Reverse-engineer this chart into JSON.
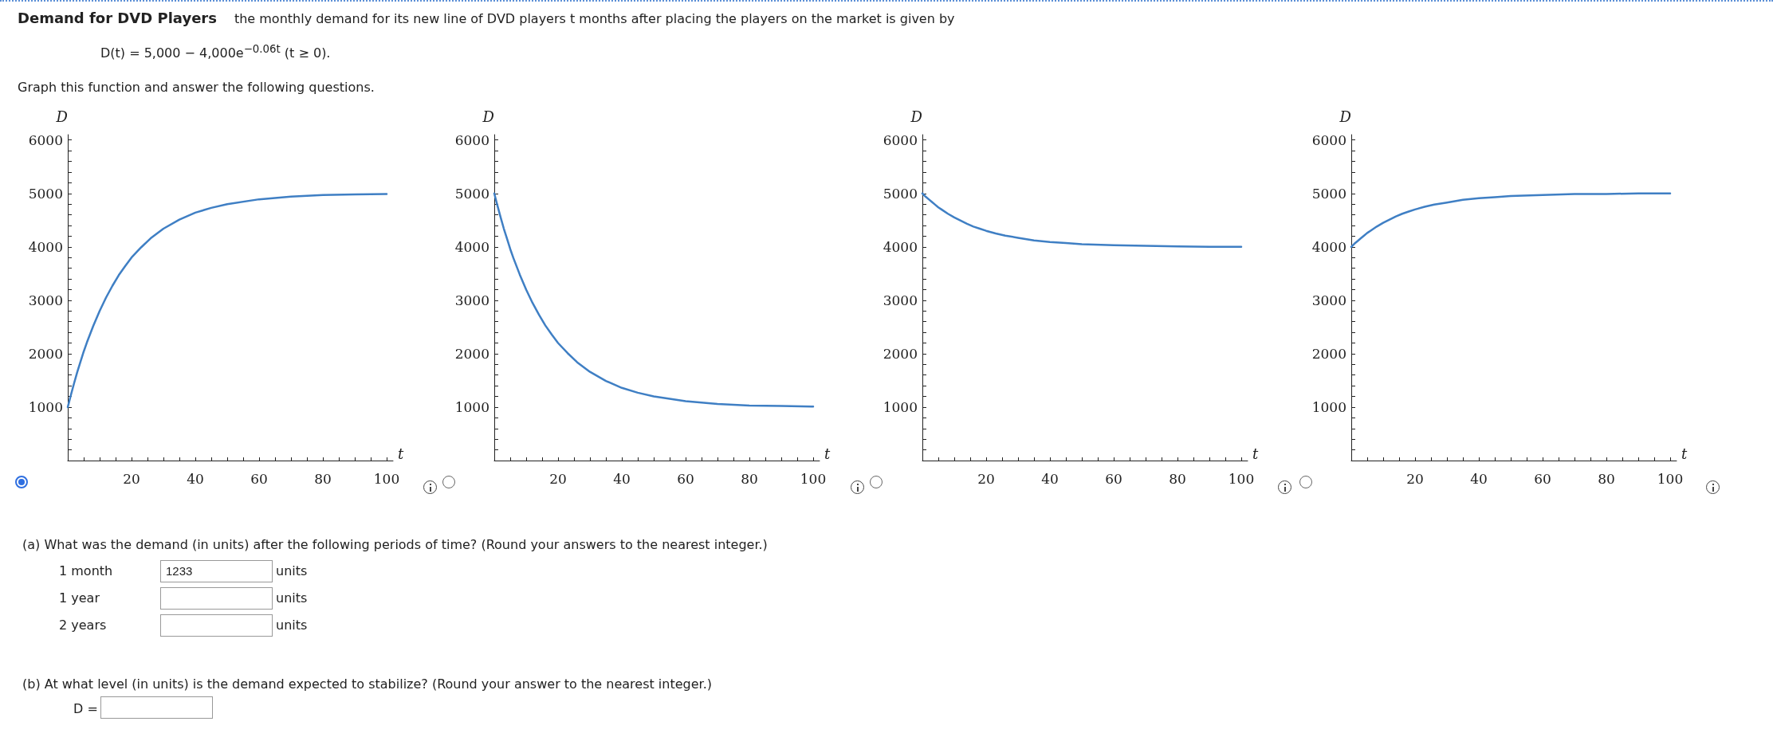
{
  "chart_data": [
    {
      "type": "other",
      "title": "Demand for DVD Players",
      "subtitle": "the monthly demand for its new line of DVD players t months after placing the players on the market is given by",
      "annotations": [
        "D(t) = 5,000 − 4,000e$^{−0.06t}$   (t ≥ 0).",
        "Graph this function and answer the following questions.",
        "(a)  What was the demand (in units) after the following periods of time? (Round your answers to the nearest integer.)",
        "1 month",
        "1233",
        "units",
        "1 year",
        "units",
        "2 years",
        "units",
        "(b)  At what level (in units) is the demand expected to stabilize? (Round your answer to the nearest integer.)",
        "D ="
      ]
    },
    {
      "type": "line",
      "xlabel": "t",
      "ylabel": "D",
      "xlim": [
        0,
        102
      ],
      "ylim": [
        0,
        6100
      ],
      "marker": "none",
      "line_style": "solid",
      "grid": false,
      "xticks": [
        {
          "value": 5,
          "label": null
        },
        {
          "value": 10,
          "label": null
        },
        {
          "value": 15,
          "label": null
        },
        20,
        {
          "value": 25,
          "label": null
        },
        {
          "value": 30,
          "label": null
        },
        {
          "value": 35,
          "label": null
        },
        40,
        {
          "value": 45,
          "label": null
        },
        {
          "value": 50,
          "label": null
        },
        {
          "value": 55,
          "label": null
        },
        60,
        {
          "value": 65,
          "label": null
        },
        {
          "value": 70,
          "label": null
        },
        {
          "value": 75,
          "label": null
        },
        80,
        {
          "value": 85,
          "label": null
        },
        {
          "value": 90,
          "label": null
        },
        {
          "value": 95,
          "label": null
        },
        100
      ],
      "yticks": [
        {
          "value": 200,
          "label": null
        },
        {
          "value": 400,
          "label": null
        },
        {
          "value": 600,
          "label": null
        },
        {
          "value": 800,
          "label": null
        },
        1000,
        {
          "value": 1200,
          "label": null
        },
        {
          "value": 1400,
          "label": null
        },
        {
          "value": 1600,
          "label": null
        },
        {
          "value": 1800,
          "label": null
        },
        2000,
        {
          "value": 2200,
          "label": null
        },
        {
          "value": 2400,
          "label": null
        },
        {
          "value": 2600,
          "label": null
        },
        {
          "value": 2800,
          "label": null
        },
        3000,
        {
          "value": 3200,
          "label": null
        },
        {
          "value": 3400,
          "label": null
        },
        {
          "value": 3600,
          "label": null
        },
        {
          "value": 3800,
          "label": null
        },
        4000,
        {
          "value": 4200,
          "label": null
        },
        {
          "value": 4400,
          "label": null
        },
        {
          "value": 4600,
          "label": null
        },
        {
          "value": 4800,
          "label": null
        },
        5000,
        {
          "value": 5200,
          "label": null
        },
        {
          "value": 5400,
          "label": null
        },
        {
          "value": 5600,
          "label": null
        },
        {
          "value": 5800,
          "label": null
        },
        6000
      ],
      "x": [
        0,
        1,
        2,
        3,
        4,
        5,
        6,
        8,
        10,
        12,
        14,
        16,
        18,
        20,
        23,
        26,
        30,
        35,
        40,
        45,
        50,
        60,
        70,
        80,
        90,
        100
      ],
      "series": [
        {
          "color": "#3f7fc4",
          "values": [
            1000,
            1230,
            1450,
            1660,
            1850,
            2040,
            2210,
            2520,
            2800,
            3050,
            3270,
            3470,
            3640,
            3800,
            3990,
            4160,
            4340,
            4510,
            4640,
            4730,
            4800,
            4890,
            4940,
            4970,
            4980,
            4990
          ]
        }
      ]
    },
    {
      "type": "line",
      "xlabel": "t",
      "ylabel": "D",
      "xlim": [
        0,
        102
      ],
      "ylim": [
        0,
        6100
      ],
      "marker": "none",
      "line_style": "solid",
      "grid": false,
      "xticks": [
        {
          "value": 5,
          "label": null
        },
        {
          "value": 10,
          "label": null
        },
        {
          "value": 15,
          "label": null
        },
        20,
        {
          "value": 25,
          "label": null
        },
        {
          "value": 30,
          "label": null
        },
        {
          "value": 35,
          "label": null
        },
        40,
        {
          "value": 45,
          "label": null
        },
        {
          "value": 50,
          "label": null
        },
        {
          "value": 55,
          "label": null
        },
        60,
        {
          "value": 65,
          "label": null
        },
        {
          "value": 70,
          "label": null
        },
        {
          "value": 75,
          "label": null
        },
        80,
        {
          "value": 85,
          "label": null
        },
        {
          "value": 90,
          "label": null
        },
        {
          "value": 95,
          "label": null
        },
        100
      ],
      "yticks": [
        {
          "value": 200,
          "label": null
        },
        {
          "value": 400,
          "label": null
        },
        {
          "value": 600,
          "label": null
        },
        {
          "value": 800,
          "label": null
        },
        1000,
        {
          "value": 1200,
          "label": null
        },
        {
          "value": 1400,
          "label": null
        },
        {
          "value": 1600,
          "label": null
        },
        {
          "value": 1800,
          "label": null
        },
        2000,
        {
          "value": 2200,
          "label": null
        },
        {
          "value": 2400,
          "label": null
        },
        {
          "value": 2600,
          "label": null
        },
        {
          "value": 2800,
          "label": null
        },
        3000,
        {
          "value": 3200,
          "label": null
        },
        {
          "value": 3400,
          "label": null
        },
        {
          "value": 3600,
          "label": null
        },
        {
          "value": 3800,
          "label": null
        },
        4000,
        {
          "value": 4200,
          "label": null
        },
        {
          "value": 4400,
          "label": null
        },
        {
          "value": 4600,
          "label": null
        },
        {
          "value": 4800,
          "label": null
        },
        5000,
        {
          "value": 5200,
          "label": null
        },
        {
          "value": 5400,
          "label": null
        },
        {
          "value": 5600,
          "label": null
        },
        {
          "value": 5800,
          "label": null
        },
        6000
      ],
      "x": [
        0,
        1,
        2,
        3,
        4,
        5,
        6,
        8,
        10,
        12,
        14,
        16,
        18,
        20,
        23,
        26,
        30,
        35,
        40,
        45,
        50,
        60,
        70,
        80,
        90,
        100
      ],
      "series": [
        {
          "color": "#3f7fc4",
          "values": [
            5000,
            4770,
            4550,
            4340,
            4150,
            3960,
            3790,
            3480,
            3200,
            2950,
            2730,
            2530,
            2360,
            2200,
            2010,
            1840,
            1660,
            1490,
            1360,
            1270,
            1200,
            1110,
            1060,
            1030,
            1020,
            1010
          ]
        }
      ]
    },
    {
      "type": "line",
      "xlabel": "t",
      "ylabel": "D",
      "xlim": [
        0,
        102
      ],
      "ylim": [
        0,
        6100
      ],
      "marker": "none",
      "line_style": "solid",
      "grid": false,
      "xticks": [
        {
          "value": 5,
          "label": null
        },
        {
          "value": 10,
          "label": null
        },
        {
          "value": 15,
          "label": null
        },
        20,
        {
          "value": 25,
          "label": null
        },
        {
          "value": 30,
          "label": null
        },
        {
          "value": 35,
          "label": null
        },
        40,
        {
          "value": 45,
          "label": null
        },
        {
          "value": 50,
          "label": null
        },
        {
          "value": 55,
          "label": null
        },
        60,
        {
          "value": 65,
          "label": null
        },
        {
          "value": 70,
          "label": null
        },
        {
          "value": 75,
          "label": null
        },
        80,
        {
          "value": 85,
          "label": null
        },
        {
          "value": 90,
          "label": null
        },
        {
          "value": 95,
          "label": null
        },
        100
      ],
      "yticks": [
        {
          "value": 200,
          "label": null
        },
        {
          "value": 400,
          "label": null
        },
        {
          "value": 600,
          "label": null
        },
        {
          "value": 800,
          "label": null
        },
        1000,
        {
          "value": 1200,
          "label": null
        },
        {
          "value": 1400,
          "label": null
        },
        {
          "value": 1600,
          "label": null
        },
        {
          "value": 1800,
          "label": null
        },
        2000,
        {
          "value": 2200,
          "label": null
        },
        {
          "value": 2400,
          "label": null
        },
        {
          "value": 2600,
          "label": null
        },
        {
          "value": 2800,
          "label": null
        },
        3000,
        {
          "value": 3200,
          "label": null
        },
        {
          "value": 3400,
          "label": null
        },
        {
          "value": 3600,
          "label": null
        },
        {
          "value": 3800,
          "label": null
        },
        4000,
        {
          "value": 4200,
          "label": null
        },
        {
          "value": 4400,
          "label": null
        },
        {
          "value": 4600,
          "label": null
        },
        {
          "value": 4800,
          "label": null
        },
        5000,
        {
          "value": 5200,
          "label": null
        },
        {
          "value": 5400,
          "label": null
        },
        {
          "value": 5600,
          "label": null
        },
        {
          "value": 5800,
          "label": null
        },
        6000
      ],
      "x": [
        0,
        1,
        2,
        3,
        4,
        5,
        6,
        8,
        10,
        12,
        14,
        16,
        18,
        20,
        23,
        26,
        30,
        35,
        40,
        45,
        50,
        60,
        70,
        80,
        90,
        100
      ],
      "series": [
        {
          "color": "#3f7fc4",
          "values": [
            5000,
            4940,
            4890,
            4840,
            4790,
            4740,
            4700,
            4620,
            4550,
            4490,
            4430,
            4380,
            4340,
            4300,
            4250,
            4210,
            4170,
            4120,
            4090,
            4070,
            4050,
            4030,
            4020,
            4010,
            4000,
            4000
          ]
        }
      ]
    },
    {
      "type": "line",
      "xlabel": "t",
      "ylabel": "D",
      "xlim": [
        0,
        102
      ],
      "ylim": [
        0,
        6100
      ],
      "marker": "none",
      "line_style": "solid",
      "grid": false,
      "xticks": [
        {
          "value": 5,
          "label": null
        },
        {
          "value": 10,
          "label": null
        },
        {
          "value": 15,
          "label": null
        },
        20,
        {
          "value": 25,
          "label": null
        },
        {
          "value": 30,
          "label": null
        },
        {
          "value": 35,
          "label": null
        },
        40,
        {
          "value": 45,
          "label": null
        },
        {
          "value": 50,
          "label": null
        },
        {
          "value": 55,
          "label": null
        },
        60,
        {
          "value": 65,
          "label": null
        },
        {
          "value": 70,
          "label": null
        },
        {
          "value": 75,
          "label": null
        },
        80,
        {
          "value": 85,
          "label": null
        },
        {
          "value": 90,
          "label": null
        },
        {
          "value": 95,
          "label": null
        },
        100
      ],
      "yticks": [
        {
          "value": 200,
          "label": null
        },
        {
          "value": 400,
          "label": null
        },
        {
          "value": 600,
          "label": null
        },
        {
          "value": 800,
          "label": null
        },
        1000,
        {
          "value": 1200,
          "label": null
        },
        {
          "value": 1400,
          "label": null
        },
        {
          "value": 1600,
          "label": null
        },
        {
          "value": 1800,
          "label": null
        },
        2000,
        {
          "value": 2200,
          "label": null
        },
        {
          "value": 2400,
          "label": null
        },
        {
          "value": 2600,
          "label": null
        },
        {
          "value": 2800,
          "label": null
        },
        3000,
        {
          "value": 3200,
          "label": null
        },
        {
          "value": 3400,
          "label": null
        },
        {
          "value": 3600,
          "label": null
        },
        {
          "value": 3800,
          "label": null
        },
        4000,
        {
          "value": 4200,
          "label": null
        },
        {
          "value": 4400,
          "label": null
        },
        {
          "value": 4600,
          "label": null
        },
        {
          "value": 4800,
          "label": null
        },
        5000,
        {
          "value": 5200,
          "label": null
        },
        {
          "value": 5400,
          "label": null
        },
        {
          "value": 5600,
          "label": null
        },
        {
          "value": 5800,
          "label": null
        },
        6000
      ],
      "x": [
        0,
        1,
        2,
        3,
        4,
        5,
        6,
        8,
        10,
        12,
        14,
        16,
        18,
        20,
        23,
        26,
        30,
        35,
        40,
        45,
        50,
        60,
        70,
        80,
        90,
        100
      ],
      "series": [
        {
          "color": "#3f7fc4",
          "values": [
            4000,
            4060,
            4110,
            4160,
            4210,
            4260,
            4300,
            4380,
            4450,
            4510,
            4570,
            4620,
            4660,
            4700,
            4750,
            4790,
            4830,
            4880,
            4910,
            4930,
            4950,
            4970,
            4990,
            4990,
            5000,
            5000
          ]
        }
      ]
    }
  ]
}
